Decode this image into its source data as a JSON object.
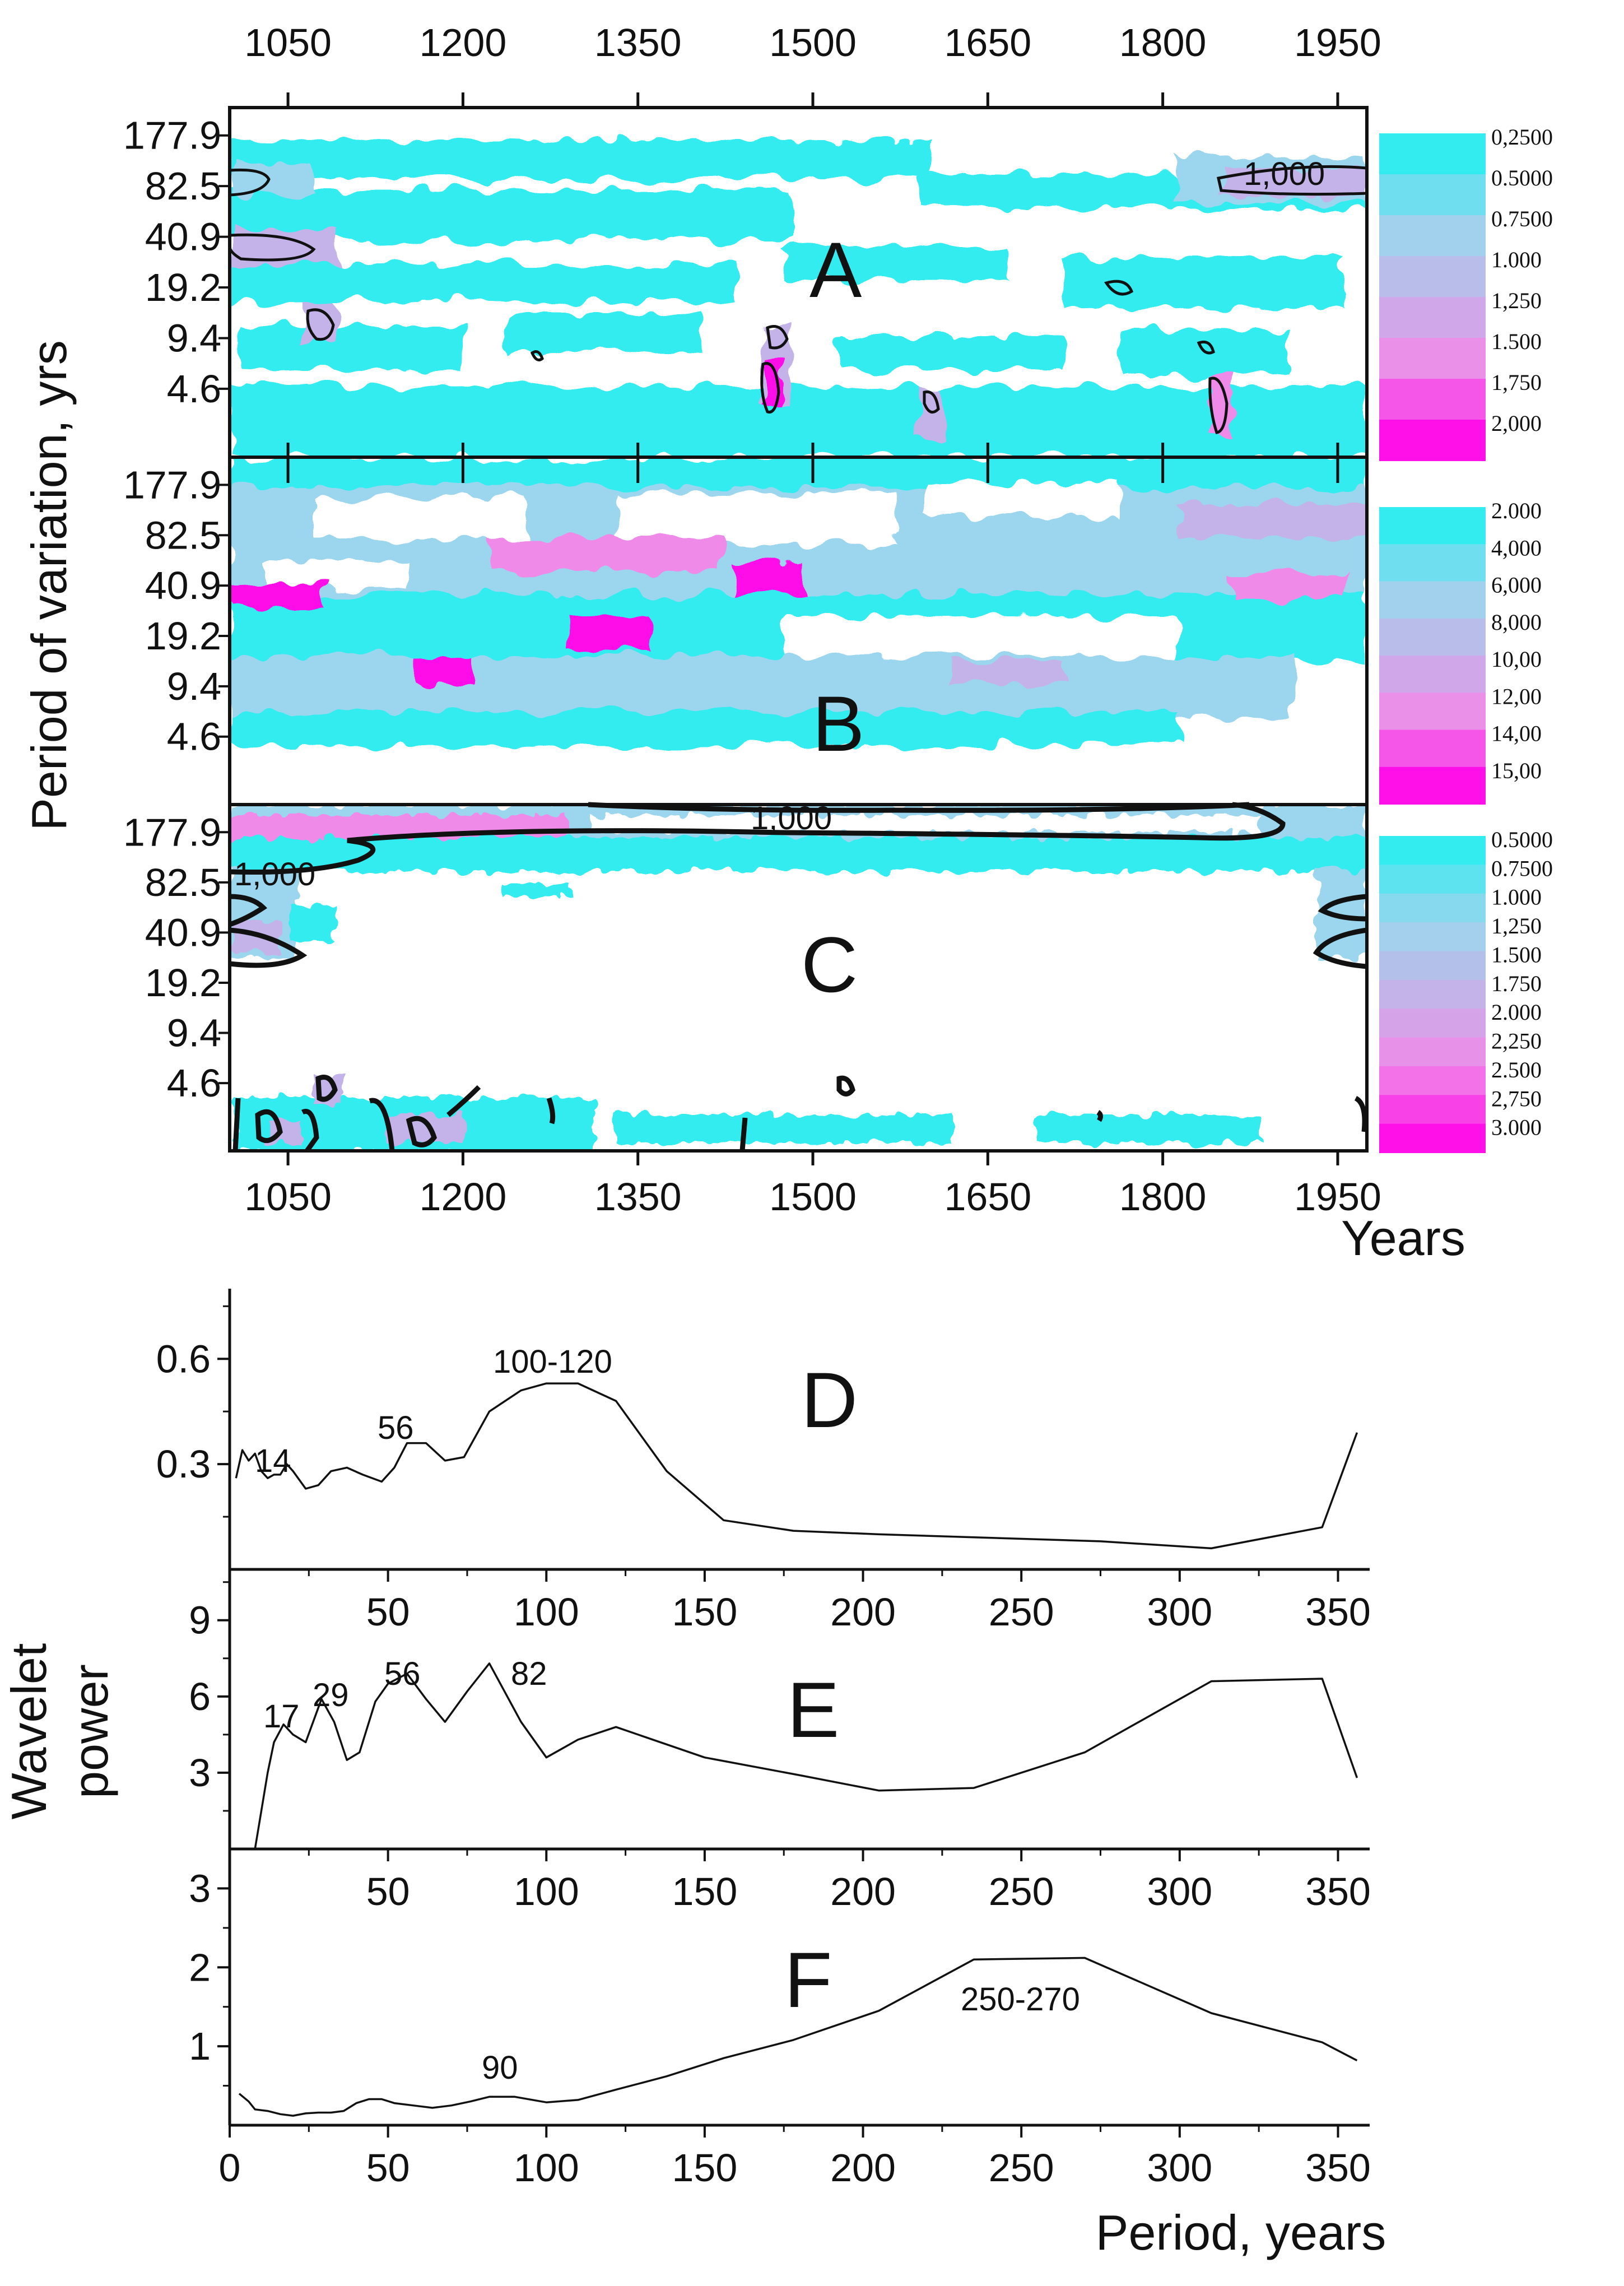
{
  "chart_data": [
    {
      "type": "heatmap",
      "panel": "A",
      "xlabel": "Years",
      "ylabel": "Period of variation, yrs",
      "x_ticks": [
        "1050",
        "1200",
        "1350",
        "1500",
        "1650",
        "1800",
        "1950"
      ],
      "x_tick_values": [
        1050,
        1200,
        1350,
        1500,
        1650,
        1800,
        1950
      ],
      "xlim": [
        1000,
        1975
      ],
      "y_ticks": [
        "177.9",
        "82.5",
        "40.9",
        "19.2",
        "9.4",
        "4.6"
      ],
      "colorbar": [
        "0,2500",
        "0.5000",
        "0.7500",
        "1.000",
        "1,250",
        "1.500",
        "1,750",
        "2,000"
      ],
      "contour_labels": [
        "1,000"
      ]
    },
    {
      "type": "heatmap",
      "panel": "B",
      "xlabel": "Years",
      "ylabel": "Period of variation, yrs",
      "x_tick_values": [
        1050,
        1200,
        1350,
        1500,
        1650,
        1800,
        1950
      ],
      "xlim": [
        1000,
        1975
      ],
      "y_ticks": [
        "177.9",
        "82.5",
        "40.9",
        "19.2",
        "9.4",
        "4.6"
      ],
      "colorbar": [
        "2.000",
        "4,000",
        "6,000",
        "8,000",
        "10,00",
        "12,00",
        "14,00",
        "15,00"
      ]
    },
    {
      "type": "heatmap",
      "panel": "C",
      "xlabel": "Years",
      "ylabel": "Period of variation, yrs",
      "x_ticks": [
        "1050",
        "1200",
        "1350",
        "1500",
        "1650",
        "1800",
        "1950"
      ],
      "x_tick_values": [
        1050,
        1200,
        1350,
        1500,
        1650,
        1800,
        1950
      ],
      "xlim": [
        1000,
        1975
      ],
      "y_ticks": [
        "177.9",
        "82.5",
        "40.9",
        "19.2",
        "9.4",
        "4.6"
      ],
      "colorbar": [
        "0.5000",
        "0.7500",
        "1.000",
        "1,250",
        "1.500",
        "1.750",
        "2.000",
        "2,250",
        "2.500",
        "2,750",
        "3.000"
      ],
      "contour_labels": [
        "1,000",
        "1,000"
      ]
    },
    {
      "type": "line",
      "panel": "D",
      "xlabel": "Period, years",
      "ylabel": "Wavelet power",
      "xlim": [
        0,
        360
      ],
      "ylim": [
        0,
        0.8
      ],
      "y_ticks": [
        "0.3",
        "0.6"
      ],
      "y_tick_values": [
        0.3,
        0.6
      ],
      "x_ticks": [
        "50",
        "100",
        "150",
        "200",
        "250",
        "300",
        "350"
      ],
      "x_tick_values": [
        50,
        100,
        150,
        200,
        250,
        300,
        350
      ],
      "x": [
        2,
        4,
        6,
        8,
        10,
        12,
        14,
        16,
        18,
        20,
        24,
        28,
        32,
        37,
        42,
        48,
        52,
        56,
        62,
        68,
        74,
        82,
        92,
        100,
        110,
        122,
        138,
        156,
        178,
        205,
        240,
        275,
        310,
        345,
        356
      ],
      "y": [
        0.26,
        0.34,
        0.31,
        0.33,
        0.28,
        0.26,
        0.27,
        0.27,
        0.3,
        0.28,
        0.23,
        0.24,
        0.28,
        0.29,
        0.27,
        0.25,
        0.29,
        0.36,
        0.36,
        0.31,
        0.32,
        0.45,
        0.51,
        0.53,
        0.53,
        0.48,
        0.28,
        0.14,
        0.11,
        0.1,
        0.09,
        0.08,
        0.06,
        0.12,
        0.39
      ],
      "annotations": [
        "14",
        "56",
        "100-120"
      ]
    },
    {
      "type": "line",
      "panel": "E",
      "xlabel": "Period, years",
      "ylabel": "Wavelet power",
      "xlim": [
        0,
        360
      ],
      "ylim": [
        0,
        11
      ],
      "y_ticks": [
        "3",
        "6",
        "9"
      ],
      "y_tick_values": [
        3,
        6,
        9
      ],
      "x_ticks": [
        "50",
        "100",
        "150",
        "200",
        "250",
        "300",
        "350"
      ],
      "x_tick_values": [
        50,
        100,
        150,
        200,
        250,
        300,
        350
      ],
      "x": [
        8,
        10,
        12,
        14,
        17,
        20,
        24,
        29,
        33,
        37,
        41,
        46,
        50,
        56,
        62,
        68,
        75,
        82,
        92,
        100,
        110,
        122,
        150,
        180,
        205,
        235,
        270,
        310,
        345,
        356
      ],
      "y": [
        0.0,
        1.5,
        3.0,
        4.2,
        4.9,
        4.5,
        4.2,
        5.9,
        5.0,
        3.5,
        3.8,
        5.8,
        6.5,
        6.9,
        5.9,
        5.0,
        6.2,
        7.3,
        5.0,
        3.6,
        4.3,
        4.8,
        3.6,
        2.9,
        2.3,
        2.4,
        3.8,
        6.6,
        6.7,
        2.8
      ],
      "annotations": [
        "17",
        "29",
        "56",
        "82"
      ]
    },
    {
      "type": "line",
      "panel": "F",
      "xlabel": "Period, years",
      "ylabel": "Wavelet power",
      "xlim": [
        0,
        360
      ],
      "ylim": [
        0,
        3.5
      ],
      "y_ticks": [
        "1",
        "2",
        "3"
      ],
      "y_tick_values": [
        1,
        2,
        3
      ],
      "x_ticks": [
        "0",
        "50",
        "100",
        "150",
        "200",
        "250",
        "300",
        "350"
      ],
      "x_tick_values": [
        0,
        50,
        100,
        150,
        200,
        250,
        300,
        350
      ],
      "x": [
        3,
        6,
        8,
        12,
        16,
        20,
        24,
        28,
        32,
        36,
        40,
        44,
        48,
        52,
        58,
        64,
        70,
        76,
        82,
        90,
        100,
        110,
        122,
        138,
        156,
        178,
        205,
        235,
        270,
        310,
        345,
        356
      ],
      "y": [
        0.4,
        0.3,
        0.2,
        0.18,
        0.14,
        0.12,
        0.15,
        0.16,
        0.16,
        0.18,
        0.28,
        0.33,
        0.33,
        0.28,
        0.25,
        0.22,
        0.25,
        0.3,
        0.36,
        0.36,
        0.29,
        0.32,
        0.45,
        0.62,
        0.85,
        1.08,
        1.45,
        2.1,
        2.12,
        1.42,
        1.05,
        0.82
      ],
      "annotations": [
        "90",
        "250-270"
      ]
    }
  ],
  "labels": {
    "panel_a": "A",
    "panel_b": "B",
    "panel_c": "C",
    "panel_d": "D",
    "panel_e": "E",
    "panel_f": "F",
    "heatmap_xlabel": "Years",
    "heatmap_ylabel": "Period of variation, yrs",
    "line_ylabel_1": "Wavelet",
    "line_ylabel_2": "power",
    "line_xlabel": "Period, years"
  },
  "colors": {
    "cyan": "#33ecf0",
    "lightblue": "#9cd6ee",
    "lavender": "#c3b3e8",
    "pink": "#f08ae8",
    "magenta": "#ff10e8"
  }
}
